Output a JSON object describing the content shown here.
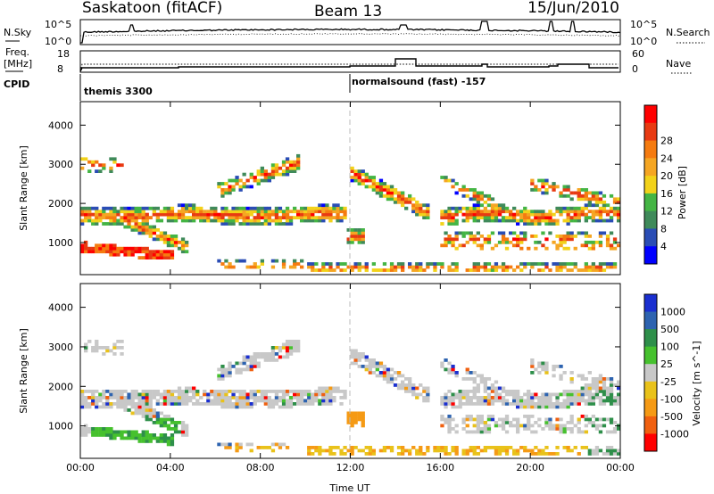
{
  "header": {
    "station": "Saskatoon (fitACF)",
    "beam": "Beam 13",
    "date": "15/Jun/2010"
  },
  "noise_panel": {
    "left_label": "N.Sky",
    "right_label": "N.Search",
    "left_ticks": [
      "10^5",
      "10^0"
    ],
    "right_ticks": [
      "10^5",
      "10^0"
    ]
  },
  "freq_panel": {
    "left_label_1": "Freq.",
    "left_label_2": "[MHz]",
    "right_label": "Nave",
    "left_ticks": [
      "18",
      "8"
    ],
    "right_ticks": [
      "60",
      "0"
    ]
  },
  "cpid_panel": {
    "label": "CPID",
    "modes": [
      {
        "name": "themis 3300",
        "start_hour": 0
      },
      {
        "name": "normalsound (fast) -157",
        "start_hour": 12
      }
    ]
  },
  "chart_data": [
    {
      "type": "heatmap",
      "name": "power",
      "ylabel": "Slant Range [km]",
      "xlabel": "Time UT",
      "x_ticks": [
        "00:00",
        "04:00",
        "08:00",
        "12:00",
        "16:00",
        "20:00",
        "00:00"
      ],
      "xlim_hours": [
        0,
        24
      ],
      "ylim": [
        180,
        4600
      ],
      "y_ticks": [
        1000,
        2000,
        3000,
        4000
      ],
      "colorbar": {
        "label": "Power [dB]",
        "ticks": [
          "4",
          "8",
          "12",
          "16",
          "20",
          "24",
          "28"
        ],
        "colors": [
          "#0000ff",
          "#2a4db5",
          "#3f8a5a",
          "#44b544",
          "#f2d21a",
          "#f5a623",
          "#f57b10",
          "#e83a12",
          "#ff0000"
        ]
      }
    },
    {
      "type": "heatmap",
      "name": "velocity",
      "ylabel": "Slant Range [km]",
      "xlabel": "Time UT",
      "x_ticks": [
        "00:00",
        "04:00",
        "08:00",
        "12:00",
        "16:00",
        "20:00",
        "00:00"
      ],
      "xlim_hours": [
        0,
        24
      ],
      "ylim": [
        180,
        4600
      ],
      "y_ticks": [
        1000,
        2000,
        3000,
        4000
      ],
      "colorbar": {
        "label": "Velocity [m s^-1]",
        "ticks": [
          "1000",
          "500",
          "100",
          "25",
          "-25",
          "-100",
          "-500",
          "-1000"
        ],
        "colors": [
          "#1a2fd0",
          "#2d63b0",
          "#2e8f4a",
          "#46c12e",
          "#c8c8c8",
          "#e9c21a",
          "#f59a15",
          "#f06010",
          "#ff0000"
        ]
      }
    }
  ]
}
